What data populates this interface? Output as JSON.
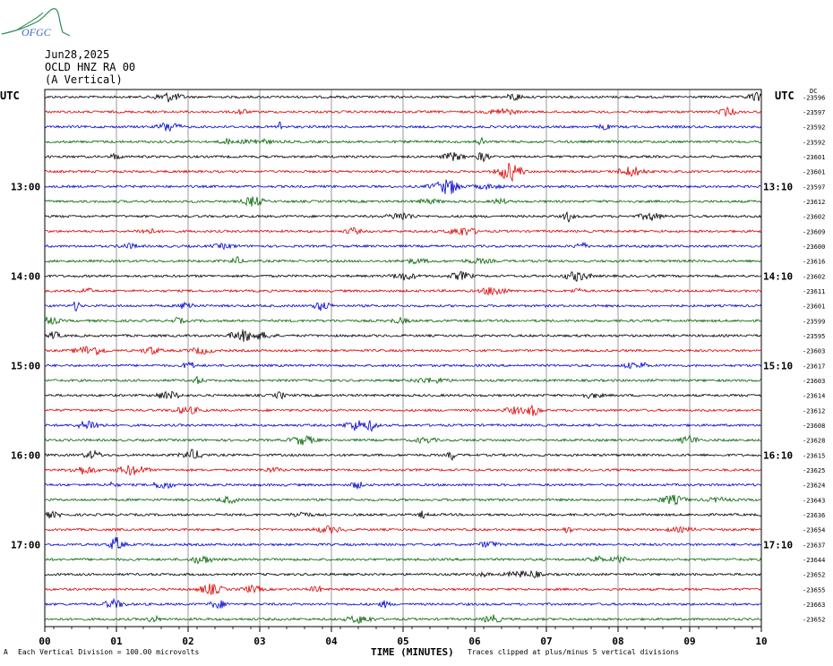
{
  "logo": {
    "text": "OFGC",
    "icon": "ofgc-volcano-logo-icon",
    "color": "#2e8b57"
  },
  "header": {
    "date": "Jun28,2025",
    "station": "OCLD HNZ RA 00",
    "component": "(A Vertical)"
  },
  "utc_left": "UTC",
  "utc_right": "UTC",
  "corner_label": "DC",
  "footer": {
    "scale": "Each Vertical Division =  100.00 microvolts",
    "clip": "Traces clipped at plus/minus 5 vertical divisions",
    "corner_mark": "A"
  },
  "chart_data": {
    "type": "line",
    "title": "",
    "xlabel": "TIME (MINUTES)",
    "ylabel": "",
    "x_ticks": [
      "00",
      "01",
      "02",
      "03",
      "04",
      "05",
      "06",
      "07",
      "08",
      "09",
      "10"
    ],
    "xlim": [
      0,
      10
    ],
    "grid": true,
    "left_time_labels": [
      {
        "row": 6,
        "text": "13:00"
      },
      {
        "row": 12,
        "text": "14:00"
      },
      {
        "row": 18,
        "text": "15:00"
      },
      {
        "row": 24,
        "text": "16:00"
      },
      {
        "row": 30,
        "text": "17:00"
      }
    ],
    "right_time_labels": [
      {
        "row": 6,
        "text": "13:10"
      },
      {
        "row": 12,
        "text": "14:10"
      },
      {
        "row": 18,
        "text": "15:10"
      },
      {
        "row": 24,
        "text": "16:10"
      },
      {
        "row": 30,
        "text": "17:10"
      }
    ],
    "trace_colors": [
      "#000000",
      "#dd0000",
      "#0000cc",
      "#006400"
    ],
    "dc_offsets": [
      -23596,
      -23597,
      -23592,
      -23592,
      -23601,
      -23601,
      -23597,
      -23612,
      -23602,
      -23609,
      -23600,
      -23616,
      -23602,
      -23611,
      -23601,
      -23599,
      -23595,
      -23603,
      -23617,
      -23603,
      -23614,
      -23612,
      -23608,
      -23628,
      -23615,
      -23625,
      -23624,
      -23643,
      -23636,
      -23654,
      -23637,
      -23644,
      -23652,
      -23655,
      -23663,
      -23652
    ]
  }
}
